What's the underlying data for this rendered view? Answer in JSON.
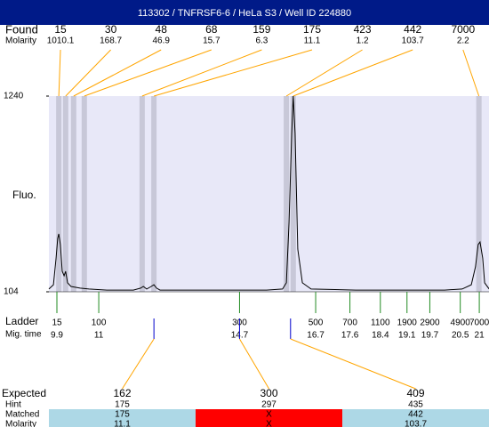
{
  "header": {
    "title": "113302 / TNFRSF6-6 / HeLa S3 / Well ID 224880"
  },
  "found": {
    "label": "Found",
    "molarity_label": "Molarity",
    "peaks": [
      {
        "size": 15,
        "molarity": 1010.1,
        "time": 9.95
      },
      {
        "size": 30,
        "molarity": 168.7,
        "time": 10.13
      },
      {
        "size": 48,
        "molarity": 46.9,
        "time": 10.34
      },
      {
        "size": 68,
        "molarity": 15.7,
        "time": 10.62
      },
      {
        "size": 159,
        "molarity": 6.3,
        "time": 12.14
      },
      {
        "size": 175,
        "molarity": 11.1,
        "time": 12.45
      },
      {
        "size": 423,
        "molarity": 1.2,
        "time": 15.93
      },
      {
        "size": 442,
        "molarity": 103.7,
        "time": 16.11
      },
      {
        "size": 7000,
        "molarity": 2.2,
        "time": 20.99
      }
    ]
  },
  "chart_data": {
    "type": "line",
    "ylabel": "Fluo.",
    "ylim": [
      104,
      1240
    ],
    "yticks": [
      104,
      1240
    ],
    "color": "#000000",
    "x": [
      9.69,
      9.81,
      9.88,
      9.92,
      9.95,
      9.99,
      10.04,
      10.09,
      10.13,
      10.18,
      10.27,
      10.51,
      10.74,
      11.21,
      11.91,
      12.1,
      12.17,
      12.26,
      12.38,
      12.45,
      12.52,
      12.61,
      13.08,
      14.25,
      15.41,
      15.83,
      15.93,
      16.0,
      16.07,
      16.11,
      16.16,
      16.23,
      16.35,
      16.58,
      17.75,
      18.92,
      20.09,
      20.55,
      20.79,
      20.9,
      20.97,
      21.02,
      21.09,
      21.14,
      21.26
    ],
    "values": [
      120,
      145,
      300,
      414,
      440,
      378,
      223,
      197,
      223,
      156,
      135,
      125,
      120,
      114,
      114,
      125,
      135,
      120,
      135,
      145,
      125,
      114,
      114,
      114,
      114,
      120,
      156,
      507,
      1023,
      1240,
      1023,
      352,
      156,
      120,
      114,
      114,
      114,
      120,
      145,
      249,
      378,
      393,
      300,
      156,
      120
    ]
  },
  "ladder": {
    "label": "Ladder",
    "time_label": "Mig. time",
    "sizes": [
      15,
      100,
      300,
      500,
      700,
      1100,
      1900,
      2900,
      4900,
      7000
    ],
    "times": [
      9.9,
      11,
      14.7,
      16.7,
      17.6,
      18.4,
      19.1,
      19.7,
      20.5,
      21
    ]
  },
  "expected": {
    "labels": [
      "Expected",
      "Hint",
      "Matched",
      "Molarity"
    ],
    "columns": [
      {
        "time": 12.45,
        "expected": 162,
        "hint": 175,
        "matched": 175,
        "molarity": 11.1
      },
      {
        "time": 14.7,
        "expected": 300,
        "hint": 297,
        "matched": "X",
        "molarity": "X"
      },
      {
        "time": 16.04,
        "expected": 409,
        "hint": 435,
        "matched": 442,
        "molarity": 103.7
      }
    ]
  }
}
